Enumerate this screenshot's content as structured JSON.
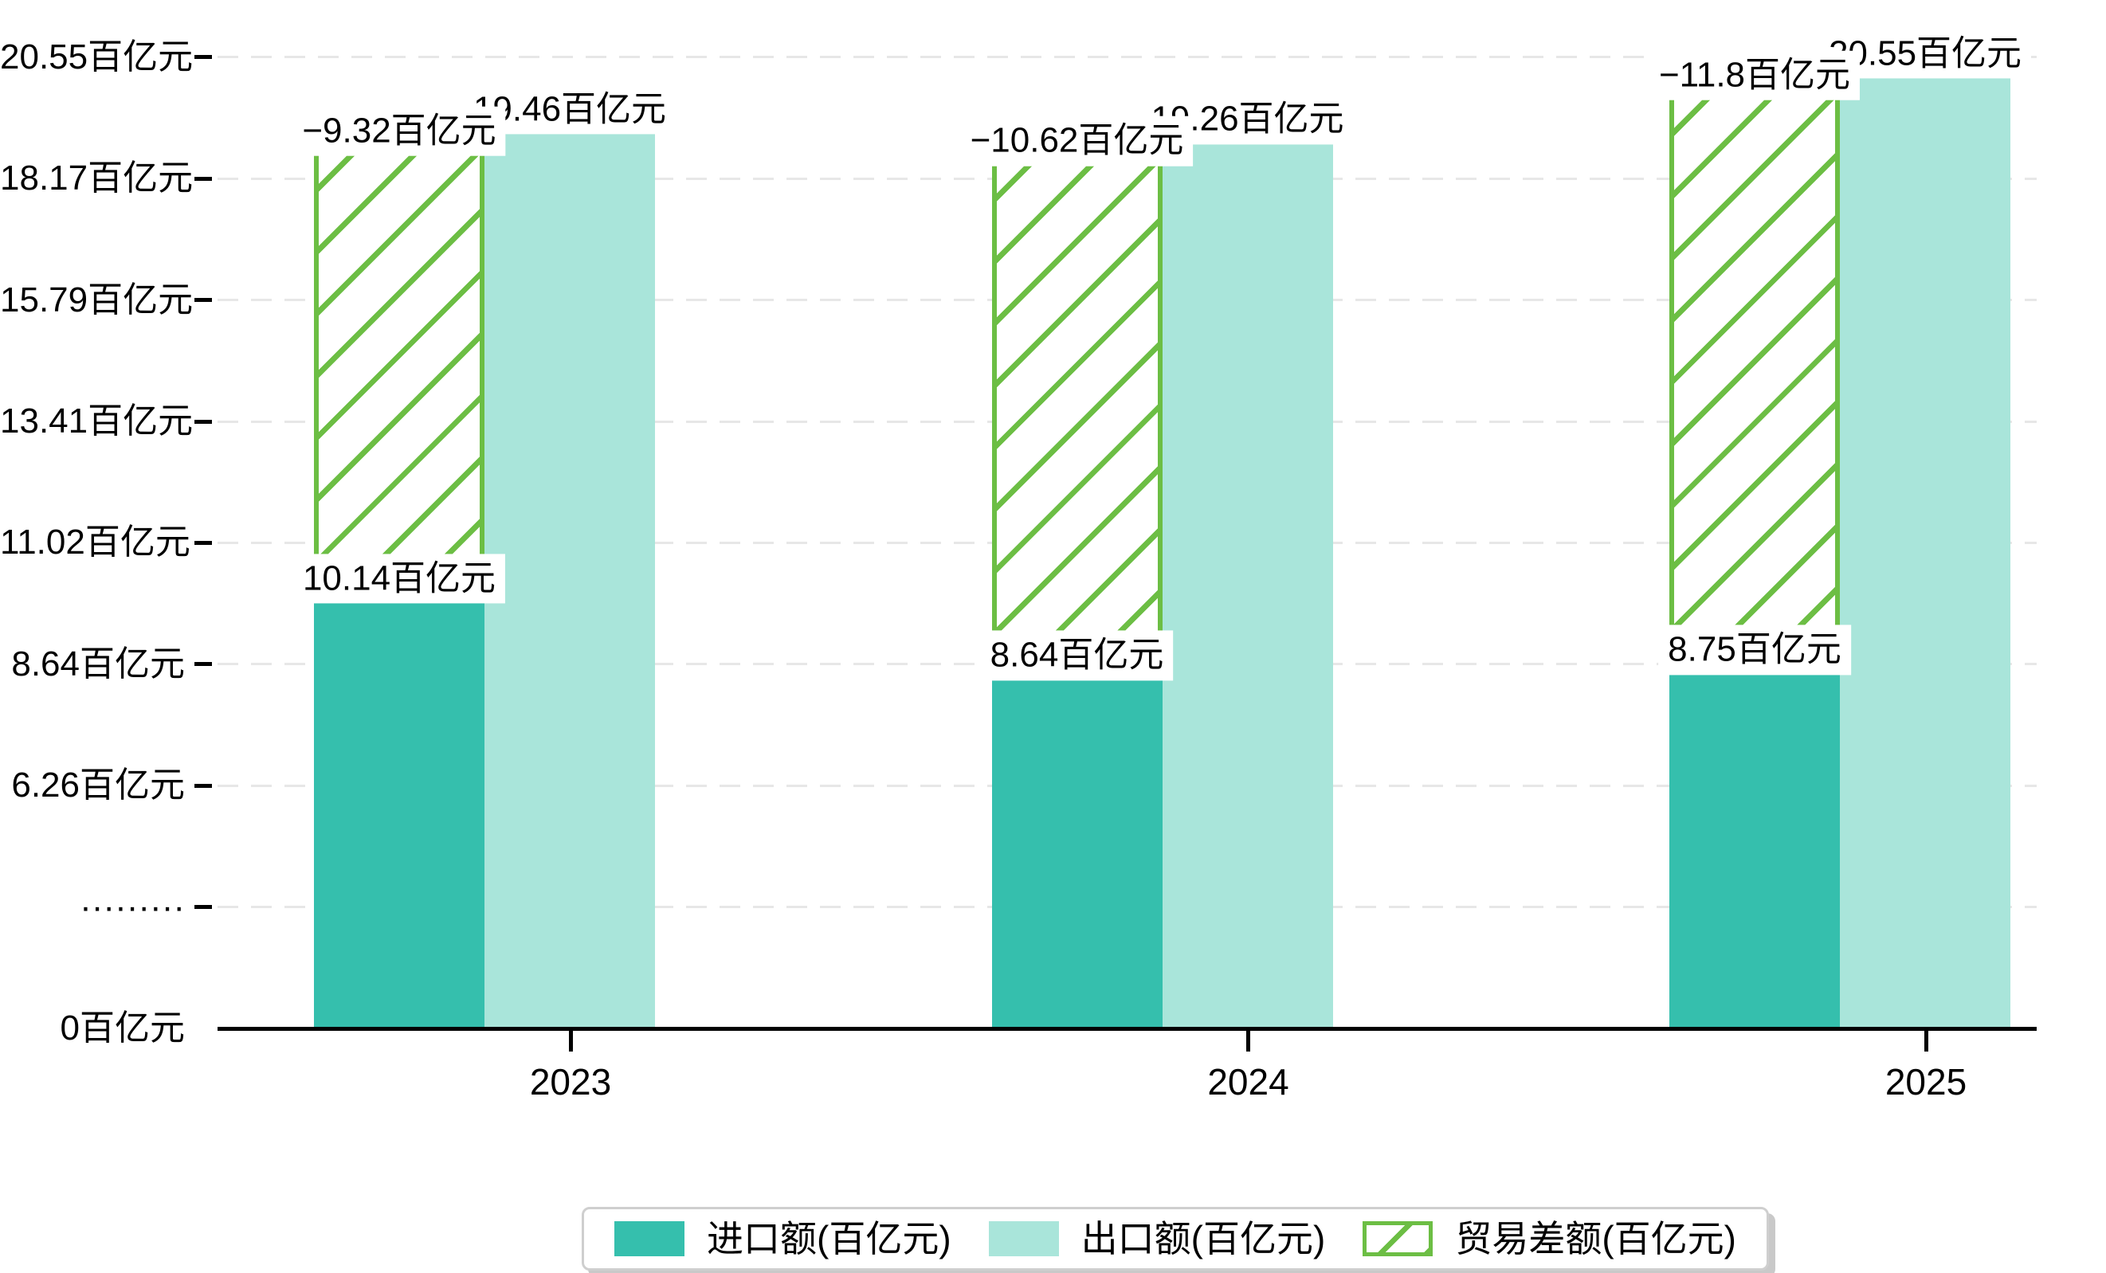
{
  "chart_data": {
    "type": "bar",
    "title": "",
    "unit": "百亿元",
    "categories": [
      "2023",
      "2024",
      "2025"
    ],
    "series": [
      {
        "name": "进口额(百亿元)",
        "role": "import",
        "color": "#35bfad",
        "values": [
          10.14,
          8.64,
          8.75
        ],
        "point_labels": [
          "10.14百亿元",
          "8.64百亿元",
          "8.75百亿元"
        ]
      },
      {
        "name": "出口额(百亿元)",
        "role": "export",
        "color": "#a9e5da",
        "values": [
          19.46,
          19.26,
          20.55
        ],
        "point_labels": [
          "19.46百亿元",
          "19.26百亿元",
          "20.55百亿元"
        ]
      },
      {
        "name": "贸易差额(百亿元)",
        "role": "balance",
        "color": "#6cbe44",
        "hatch": "/",
        "values": [
          -9.32,
          -10.62,
          -11.8
        ],
        "point_labels": [
          "−9.32百亿元",
          "−10.62百亿元",
          "−11.8百亿元"
        ]
      }
    ],
    "y_axis": {
      "broken_axis": true,
      "tick_labels": [
        "0百亿元",
        "·········",
        "6.26百亿元",
        "8.64百亿元",
        "11.02百亿元",
        "13.41百亿元",
        "15.79百亿元",
        "18.17百亿元",
        "20.55百亿元"
      ],
      "tick_values": [
        0,
        null,
        6.26,
        8.64,
        11.02,
        13.41,
        15.79,
        18.17,
        20.55
      ]
    },
    "x_axis": {
      "tick_labels": [
        "2023",
        "2024",
        "2025"
      ]
    },
    "grid": "dashed-horizontal",
    "legend_position": "bottom-center"
  },
  "legend": {
    "items": [
      {
        "label": "进口额(百亿元)"
      },
      {
        "label": "出口额(百亿元)"
      },
      {
        "label": "贸易差额(百亿元)"
      }
    ]
  },
  "colors": {
    "import_bar": "#35bfad",
    "export_bar": "#a9e5da",
    "balance_hatch": "#6cbe44",
    "gridline": "#e7e7e7",
    "axis": "#000000",
    "label_background": "#ffffff",
    "legend_border": "#cfcfcf"
  }
}
